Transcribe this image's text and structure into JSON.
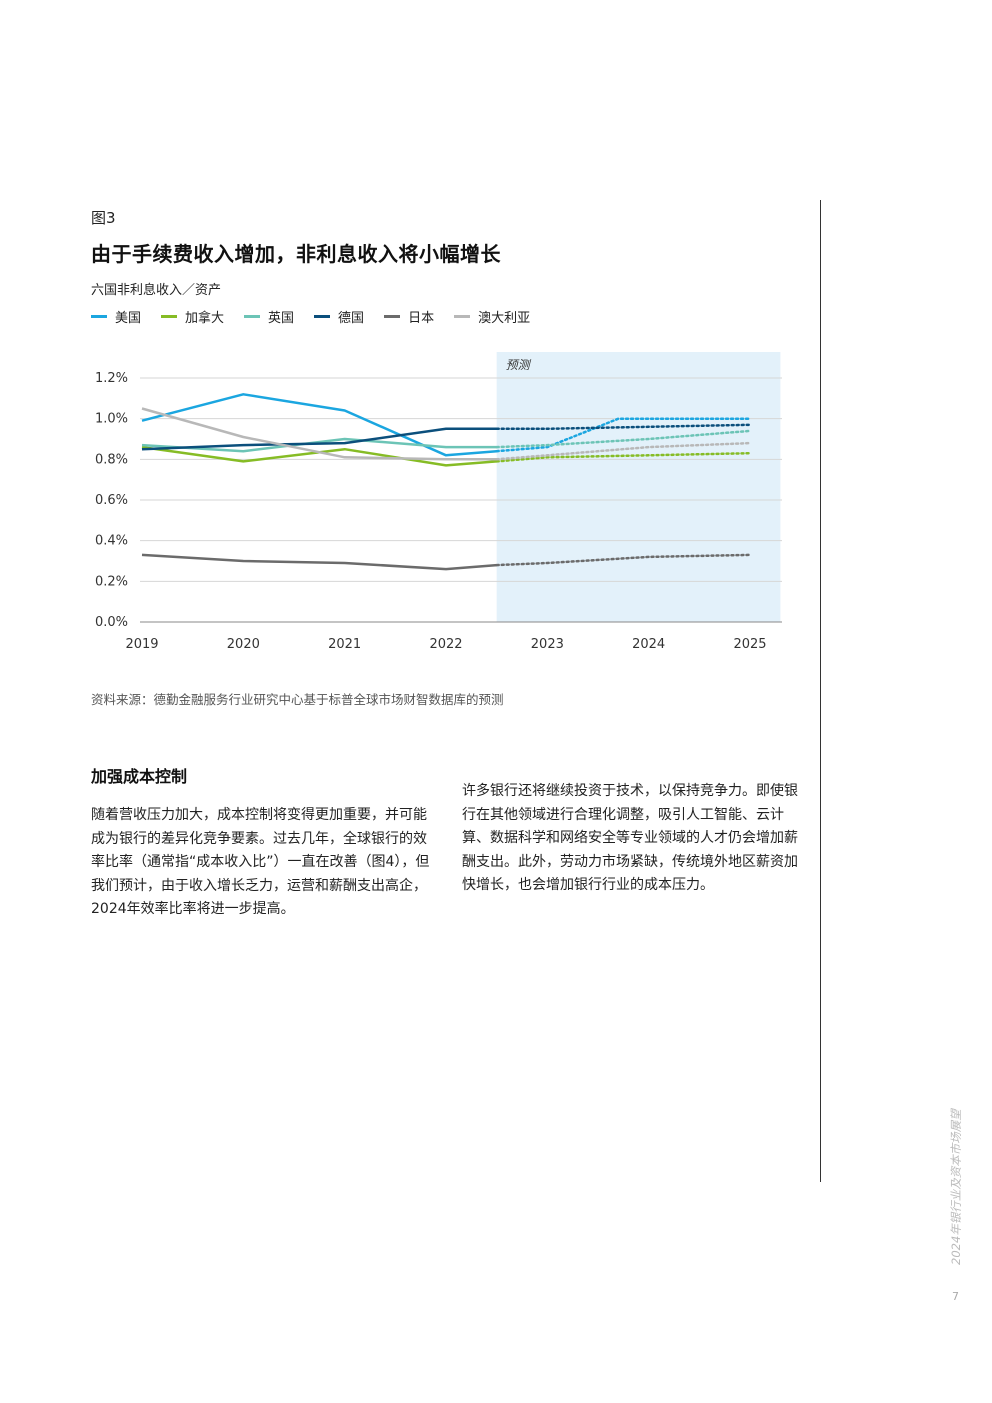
{
  "figure_label": "图3",
  "title": "由于手续费收入增加，非利息收入将小幅增长",
  "subtitle": "六国非利息收入／资产",
  "forecast_label": "预测",
  "source": "资料来源：德勤金融服务行业研究中心基于标普全球市场财智数据库的预测",
  "section_title": "加强成本控制",
  "paragraph_1": "随着营收压力加大，成本控制将变得更加重要，并可能成为银行的差异化竞争要素。过去几年，全球银行的效率比率（通常指“成本收入比”）一直在改善（图4），但我们预计，由于收入增长乏力，运营和薪酬支出高企，2024年效率比率将进一步提高。",
  "paragraph_2": "许多银行还将继续投资于技术，以保持竞争力。即使银行在其他领域进行合理化调整，吸引人工智能、云计算、数据科学和网络安全等专业领域的人才仍会增加薪酬支出。此外，劳动力市场紧缺，传统境外地区薪资加快增长，也会增加银行行业的成本压力。",
  "side_title": "2024年银行业及资本市场展望",
  "page_number": "7",
  "colors": {
    "美国": "#1ba6e0",
    "加拿大": "#86bc25",
    "英国": "#6cc4b6",
    "德国": "#0b4f7c",
    "日本": "#6b6b6b",
    "澳大利亚": "#b8b8b8",
    "forecast_bg": "#e3f1fa"
  },
  "chart_data": {
    "type": "line",
    "x": [
      "2019",
      "2020",
      "2021",
      "2022",
      "2022.5",
      "2023",
      "2024",
      "2025"
    ],
    "xticks": [
      "2019",
      "2020",
      "2021",
      "2022",
      "2023",
      "2024",
      "2025"
    ],
    "yticks": [
      "0.0%",
      "0.2%",
      "0.4%",
      "0.6%",
      "0.8%",
      "1.0%",
      "1.2%"
    ],
    "ylim": [
      0,
      1.2
    ],
    "forecast_start": 2022.5,
    "forecast_end": 2025.3,
    "series": [
      {
        "name": "美国",
        "points": [
          [
            2019,
            0.99
          ],
          [
            2020,
            1.12
          ],
          [
            2021,
            1.04
          ],
          [
            2022,
            0.82
          ],
          [
            2022.5,
            0.84
          ],
          [
            2023,
            0.86
          ],
          [
            2023.7,
            1.0
          ],
          [
            2025,
            1.0
          ]
        ]
      },
      {
        "name": "加拿大",
        "points": [
          [
            2019,
            0.86
          ],
          [
            2020,
            0.79
          ],
          [
            2021,
            0.85
          ],
          [
            2022,
            0.77
          ],
          [
            2022.5,
            0.79
          ],
          [
            2023,
            0.81
          ],
          [
            2024,
            0.82
          ],
          [
            2025,
            0.83
          ]
        ]
      },
      {
        "name": "英国",
        "points": [
          [
            2019,
            0.87
          ],
          [
            2020,
            0.84
          ],
          [
            2021,
            0.9
          ],
          [
            2022,
            0.86
          ],
          [
            2022.5,
            0.86
          ],
          [
            2023,
            0.87
          ],
          [
            2024,
            0.9
          ],
          [
            2025,
            0.94
          ]
        ]
      },
      {
        "name": "德国",
        "points": [
          [
            2019,
            0.85
          ],
          [
            2020,
            0.87
          ],
          [
            2021,
            0.88
          ],
          [
            2022,
            0.95
          ],
          [
            2022.5,
            0.95
          ],
          [
            2023,
            0.95
          ],
          [
            2024,
            0.96
          ],
          [
            2025,
            0.97
          ]
        ]
      },
      {
        "name": "日本",
        "points": [
          [
            2019,
            0.33
          ],
          [
            2020,
            0.3
          ],
          [
            2021,
            0.29
          ],
          [
            2022,
            0.26
          ],
          [
            2022.5,
            0.28
          ],
          [
            2023,
            0.29
          ],
          [
            2024,
            0.32
          ],
          [
            2025,
            0.33
          ]
        ]
      },
      {
        "name": "澳大利亚",
        "points": [
          [
            2019,
            1.05
          ],
          [
            2020,
            0.91
          ],
          [
            2021,
            0.81
          ],
          [
            2022,
            0.8
          ],
          [
            2022.5,
            0.8
          ],
          [
            2023,
            0.82
          ],
          [
            2024,
            0.86
          ],
          [
            2025,
            0.88
          ]
        ]
      }
    ]
  }
}
